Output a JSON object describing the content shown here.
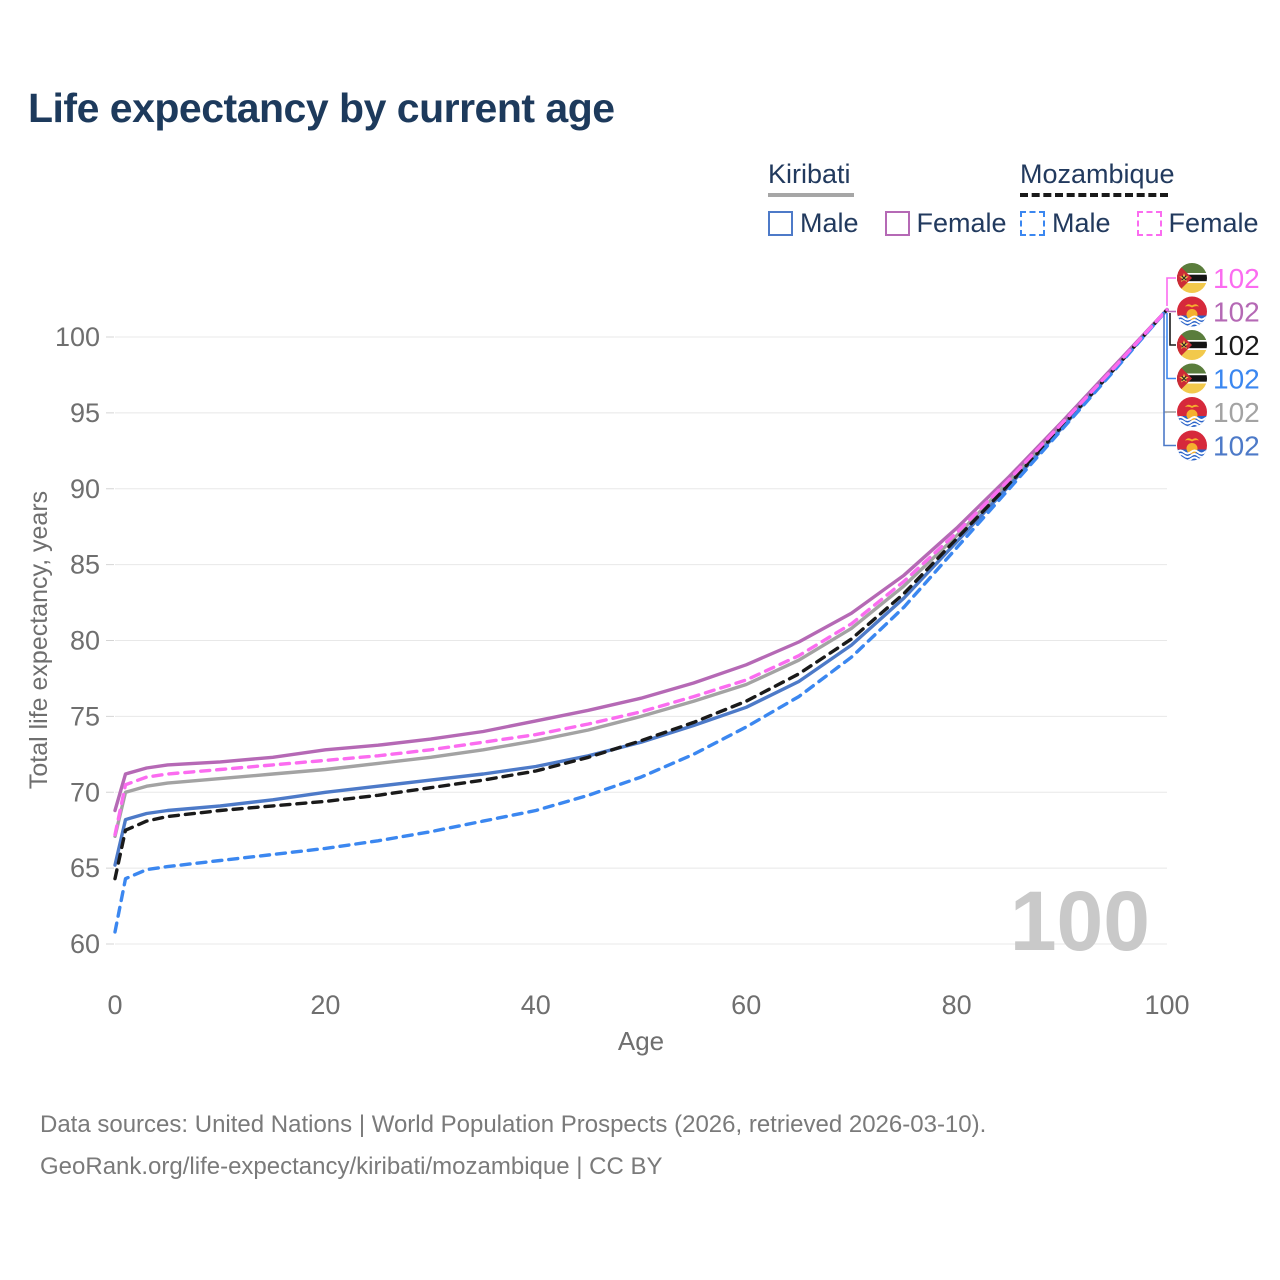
{
  "title": "Life expectancy by current age",
  "legend": {
    "groups": [
      {
        "name": "Kiribati",
        "line_style": "solid",
        "line_color": "#a6a6a6",
        "items": [
          {
            "label": "Male",
            "color": "#4d7ac8"
          },
          {
            "label": "Female",
            "color": "#b569b5"
          }
        ]
      },
      {
        "name": "Mozambique",
        "line_style": "dashed",
        "line_color": "#1a1a1a",
        "items": [
          {
            "label": "Male",
            "color": "#3b87f0"
          },
          {
            "label": "Female",
            "color": "#fb6cf0"
          }
        ]
      }
    ]
  },
  "watermark": "100",
  "footer": {
    "line1": "Data sources: United Nations | World Population Prospects (2026, retrieved 2026-03-10).",
    "line2": "GeoRank.org/life-expectancy/kiribati/mozambique | CC BY"
  },
  "chart_data": {
    "type": "line",
    "title": "Life expectancy by current age",
    "xlabel": "Age",
    "ylabel": "Total life expectancy, years",
    "xlim": [
      0,
      100
    ],
    "ylim": [
      60,
      102
    ],
    "x_ticks": [
      0,
      20,
      40,
      60,
      80,
      100
    ],
    "y_ticks": [
      60,
      65,
      70,
      75,
      80,
      85,
      90,
      95,
      100
    ],
    "grid": "horizontal",
    "ages": [
      0,
      1,
      3,
      5,
      10,
      15,
      20,
      25,
      30,
      35,
      40,
      45,
      50,
      55,
      60,
      65,
      70,
      75,
      80,
      85,
      90,
      95,
      100
    ],
    "series": [
      {
        "name": "Kiribati Both sexes",
        "country": "Kiribati",
        "sex": "Both",
        "color": "#a3a3a3",
        "dash": false,
        "values": [
          67.1,
          70.0,
          70.4,
          70.6,
          70.9,
          71.2,
          71.5,
          71.9,
          72.3,
          72.8,
          73.4,
          74.1,
          75.0,
          76.0,
          77.1,
          78.7,
          80.8,
          83.6,
          86.9,
          90.5,
          94.2,
          98.0,
          101.8
        ]
      },
      {
        "name": "Kiribati Male",
        "country": "Kiribati",
        "sex": "Male",
        "color": "#4d7ac8",
        "dash": false,
        "values": [
          65.2,
          68.2,
          68.6,
          68.8,
          69.1,
          69.5,
          70.0,
          70.4,
          70.8,
          71.2,
          71.7,
          72.4,
          73.3,
          74.4,
          75.6,
          77.3,
          79.7,
          82.8,
          86.5,
          90.2,
          94.0,
          97.9,
          101.8
        ]
      },
      {
        "name": "Kiribati Female",
        "country": "Kiribati",
        "sex": "Female",
        "color": "#b569b5",
        "dash": false,
        "values": [
          68.8,
          71.2,
          71.6,
          71.8,
          72.0,
          72.3,
          72.8,
          73.1,
          73.5,
          74.0,
          74.7,
          75.4,
          76.2,
          77.2,
          78.4,
          79.9,
          81.8,
          84.3,
          87.4,
          90.8,
          94.4,
          98.1,
          101.8
        ]
      },
      {
        "name": "Mozambique Both sexes",
        "country": "Mozambique",
        "sex": "Both",
        "color": "#1a1a1a",
        "dash": true,
        "values": [
          64.3,
          67.5,
          68.1,
          68.4,
          68.8,
          69.1,
          69.4,
          69.8,
          70.3,
          70.8,
          71.4,
          72.3,
          73.4,
          74.6,
          76.0,
          77.8,
          80.1,
          83.1,
          86.7,
          90.3,
          94.1,
          97.9,
          101.8
        ]
      },
      {
        "name": "Mozambique Male",
        "country": "Mozambique",
        "sex": "Male",
        "color": "#3b87f0",
        "dash": true,
        "values": [
          60.8,
          64.3,
          64.9,
          65.1,
          65.5,
          65.9,
          66.3,
          66.8,
          67.4,
          68.1,
          68.8,
          69.8,
          71.0,
          72.5,
          74.3,
          76.3,
          78.9,
          82.2,
          86.1,
          90.0,
          93.9,
          97.8,
          101.8
        ]
      },
      {
        "name": "Mozambique Female",
        "country": "Mozambique",
        "sex": "Female",
        "color": "#fb6cf0",
        "dash": true,
        "values": [
          67.2,
          70.5,
          71.0,
          71.2,
          71.5,
          71.8,
          72.1,
          72.4,
          72.8,
          73.3,
          73.8,
          74.5,
          75.3,
          76.3,
          77.4,
          79.0,
          81.1,
          83.9,
          87.1,
          90.6,
          94.3,
          98.0,
          101.8
        ]
      }
    ],
    "end_labels": [
      {
        "flag": "mozambique",
        "series": "Mozambique Female",
        "value": "102",
        "color": "#fb6cf0"
      },
      {
        "flag": "kiribati",
        "series": "Kiribati Female",
        "value": "102",
        "color": "#b569b5"
      },
      {
        "flag": "mozambique",
        "series": "Mozambique Both sexes",
        "value": "102",
        "color": "#1a1a1a"
      },
      {
        "flag": "mozambique",
        "series": "Mozambique Male",
        "value": "102",
        "color": "#3b87f0"
      },
      {
        "flag": "kiribati",
        "series": "Kiribati Both sexes",
        "value": "102",
        "color": "#a3a3a3"
      },
      {
        "flag": "kiribati",
        "series": "Kiribati Male",
        "value": "102",
        "color": "#4d7ac8"
      }
    ]
  }
}
